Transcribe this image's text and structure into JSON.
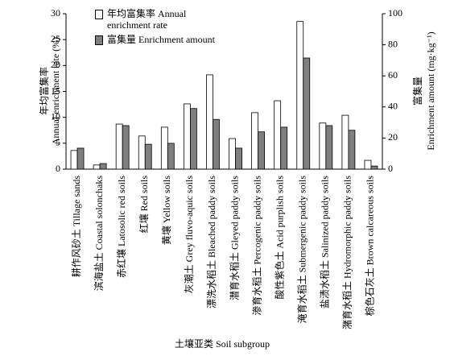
{
  "chart_data": {
    "type": "bar",
    "categories": [
      "耕作风砂土 Tillage sands",
      "滨海盐土 Coastal solonchaks",
      "赤红壤 Latosolic red soils",
      "红壤 Red soils",
      "黄壤 Yellow soils",
      "灰潮土 Grey fluvo-aquic soils",
      "漂洗水稻土 Bleached paddy soils",
      "潜育水稻土 Gleyed paddy soils",
      "渗育水稻土 Percogenic paddy soils",
      "酸性紫色土 Acid purplish soils",
      "淹育水稻土 Submergenic paddy soils",
      "盐渍水稻土 Salinized paddy soils",
      "潴育水稻土 Hydromorphic paddy soils",
      "棕色石灰土 Brown calcareous soils"
    ],
    "series": [
      {
        "name": "年均富集率 Annual enrichment rate",
        "color": "#ffffff",
        "values": [
          3.6,
          0.8,
          8.7,
          6.4,
          8.1,
          12.6,
          18.2,
          5.9,
          10.9,
          13.2,
          28.5,
          8.9,
          10.4,
          1.7
        ]
      },
      {
        "name": "富集量 Enrichment amount",
        "color": "#7f7f7f",
        "axis": "y2",
        "values": [
          13.5,
          3.6,
          28,
          16,
          16.6,
          39,
          32,
          13.5,
          24,
          27,
          71.5,
          28,
          25,
          2
        ]
      }
    ],
    "xlabel": "土壤亚类 Soil subgroup",
    "ylabel": [
      "年均富集率",
      "Annual enrichment rate (%)"
    ],
    "y2label": [
      "富集量",
      "Enrichment amount (mg·kg⁻¹)"
    ],
    "ylim": [
      0,
      30
    ],
    "yticks": [
      0,
      5,
      10,
      15,
      20,
      25,
      30
    ],
    "y2lim": [
      0,
      100
    ],
    "y2ticks": [
      0,
      20,
      40,
      60,
      80,
      100
    ],
    "legend": "top-center"
  }
}
